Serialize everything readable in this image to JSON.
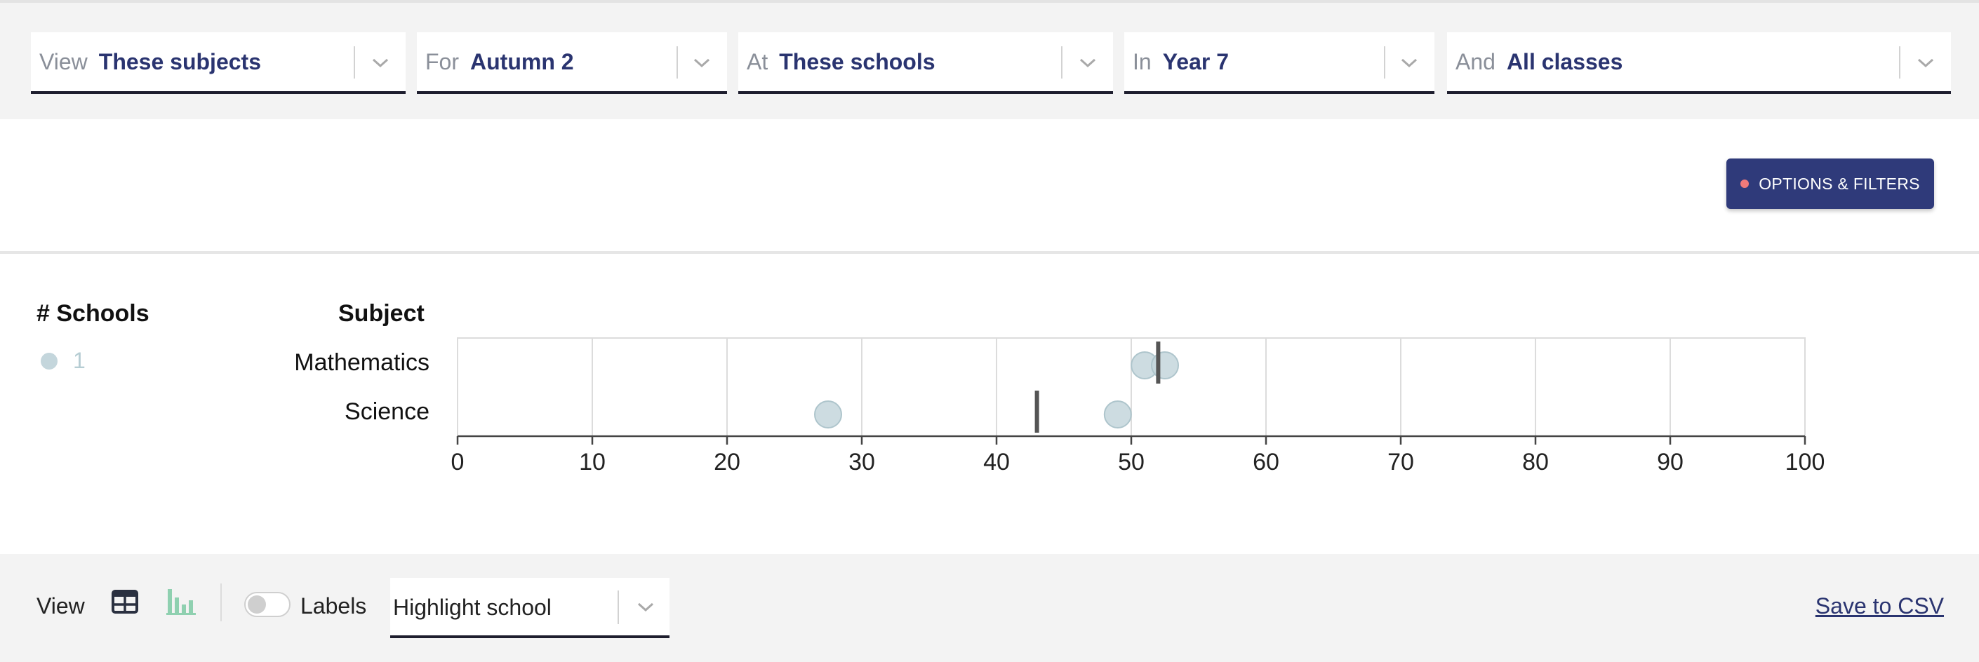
{
  "filters": [
    {
      "prefix": "View",
      "value": "These subjects"
    },
    {
      "prefix": "For",
      "value": "Autumn 2"
    },
    {
      "prefix": "At",
      "value": "These schools"
    },
    {
      "prefix": "In",
      "value": "Year 7"
    },
    {
      "prefix": "And",
      "value": "All classes"
    }
  ],
  "options_button": {
    "label": "OPTIONS & FILTERS",
    "indicator_color": "#f07a7a"
  },
  "table_headers": {
    "schools": "# Schools",
    "subject": "Subject"
  },
  "legend": [
    {
      "count": "1",
      "color": "#c4d6dc"
    }
  ],
  "chart_data": {
    "type": "scatter",
    "categories": [
      "Mathematics",
      "Science"
    ],
    "xlim": [
      0,
      100
    ],
    "xticks": [
      0,
      10,
      20,
      30,
      40,
      50,
      60,
      70,
      80,
      90,
      100
    ],
    "grid": true,
    "series": [
      {
        "category": "Mathematics",
        "points": [
          51,
          52.5
        ],
        "marker": 52
      },
      {
        "category": "Science",
        "points": [
          27.5,
          49
        ],
        "marker": 43
      }
    ],
    "point_color": "#c4d6dc",
    "marker_color": "#555555"
  },
  "bottom": {
    "view_label": "View",
    "labels_label": "Labels",
    "highlight_value": "Highlight school",
    "save_label": "Save to CSV"
  },
  "colors": {
    "accent": "#2f3a7a",
    "filter_value": "#2a3470",
    "bars_icon": "#8fd0b0"
  }
}
